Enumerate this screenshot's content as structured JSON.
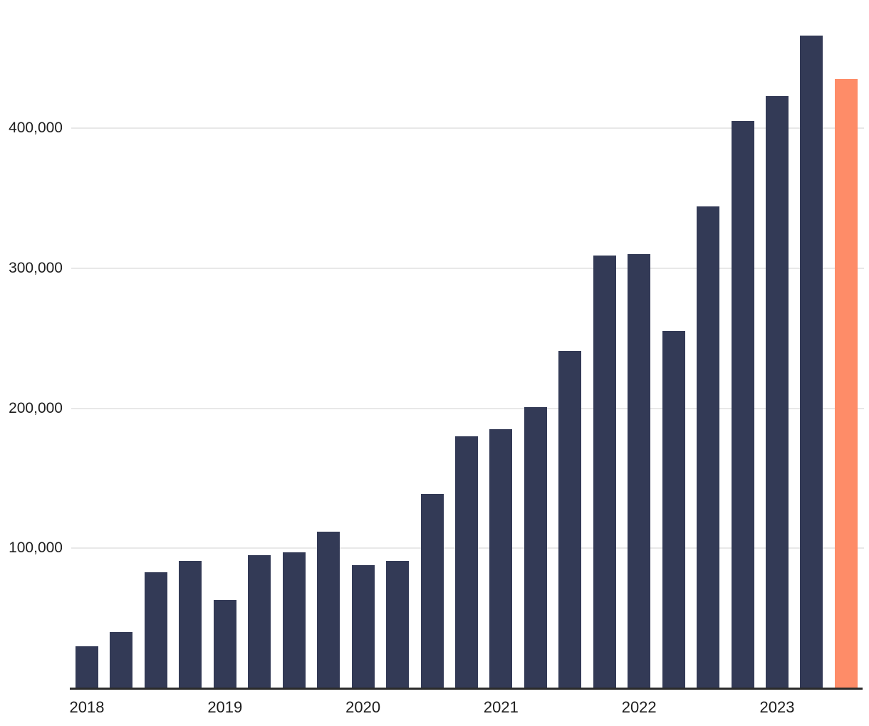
{
  "chart_data": {
    "type": "bar",
    "title": "",
    "xlabel": "",
    "ylabel": "",
    "categories": [
      "2018-Q1",
      "2018-Q2",
      "2018-Q3",
      "2018-Q4",
      "2019-Q1",
      "2019-Q2",
      "2019-Q3",
      "2019-Q4",
      "2020-Q1",
      "2020-Q2",
      "2020-Q3",
      "2020-Q4",
      "2021-Q1",
      "2021-Q2",
      "2021-Q3",
      "2021-Q4",
      "2022-Q1",
      "2022-Q2",
      "2022-Q3",
      "2022-Q4",
      "2023-Q1",
      "2023-Q2",
      "2023-Q3"
    ],
    "values": [
      30000,
      40000,
      83000,
      91000,
      63000,
      95000,
      97000,
      112000,
      88000,
      91000,
      139000,
      180000,
      185000,
      201000,
      241000,
      309000,
      310000,
      255000,
      344000,
      405000,
      423000,
      466000,
      435000
    ],
    "highlight_index": 22,
    "y_ticks": [
      {
        "value": 100000,
        "label": "100,000"
      },
      {
        "value": 200000,
        "label": "200,000"
      },
      {
        "value": 300000,
        "label": "300,000"
      },
      {
        "value": 400000,
        "label": "400,000"
      }
    ],
    "x_ticks": [
      {
        "index": 0,
        "label": "2018"
      },
      {
        "index": 4,
        "label": "2019"
      },
      {
        "index": 8,
        "label": "2020"
      },
      {
        "index": 12,
        "label": "2021"
      },
      {
        "index": 16,
        "label": "2022"
      },
      {
        "index": 20,
        "label": "2023"
      }
    ],
    "ylim": [
      0,
      491000
    ],
    "grid": "horizontal",
    "legend": "none",
    "colors": {
      "bar": "#333A56",
      "highlight": "#FE8C68",
      "gridline": "#E8E8E8",
      "axis_line": "#2B2B2B",
      "tick_text": "#1D1D1D",
      "background": "#FFFFFF"
    }
  }
}
